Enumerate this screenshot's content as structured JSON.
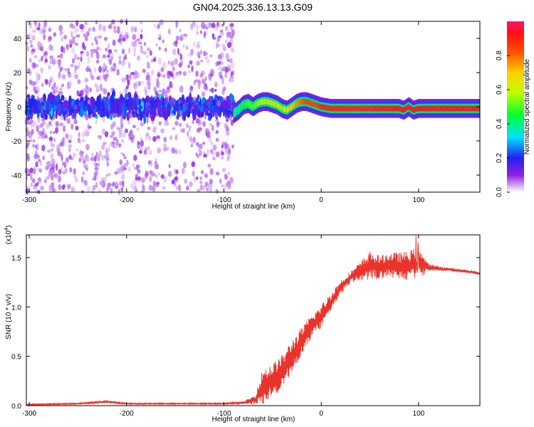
{
  "title": "GN04.2025.336.13.13.G09",
  "chart_data": [
    {
      "type": "heatmap",
      "xlabel": "Height of straight line (km)",
      "ylabel": "Frequency (Hz)",
      "xlim": [
        -303,
        163
      ],
      "ylim": [
        -50,
        50
      ],
      "xticks": [
        -300,
        -200,
        -100,
        0,
        100
      ],
      "yticks": [
        -40,
        -20,
        0,
        20,
        40
      ],
      "colorbar": {
        "label": "Normalized spectral amplitude",
        "range": [
          0.0,
          1.0
        ],
        "ticks": [
          "0.0",
          "0.2",
          "0.4",
          "0.6",
          "0.8"
        ],
        "ticks_values": [
          0.0,
          0.2,
          0.4,
          0.6,
          0.8
        ]
      },
      "noise_region_x": [
        -303,
        -90
      ],
      "signal_trace": {
        "x": [
          -90,
          -85,
          -80,
          -75,
          -70,
          -65,
          -60,
          -55,
          -50,
          -45,
          -40,
          -35,
          -30,
          -25,
          -20,
          -15,
          -10,
          -5,
          0,
          10,
          20,
          30,
          40,
          50,
          60,
          70,
          80,
          85,
          90,
          95,
          100,
          120,
          140,
          163
        ],
        "freq": [
          -4,
          -2,
          1,
          2,
          0,
          2,
          3,
          3,
          2,
          1,
          -1,
          -2,
          0,
          2,
          3,
          3,
          2,
          1,
          0,
          -1,
          -1,
          -1,
          -1,
          -1,
          -1,
          -1,
          -1,
          -2,
          0,
          -2,
          -1,
          -1,
          -1,
          -1
        ],
        "amplitude": [
          0.4,
          0.35,
          0.45,
          0.5,
          0.5,
          0.55,
          0.6,
          0.6,
          0.65,
          0.6,
          0.55,
          0.65,
          0.7,
          0.75,
          0.8,
          0.85,
          0.85,
          0.85,
          0.9,
          0.9,
          0.9,
          0.9,
          0.9,
          0.9,
          0.92,
          0.92,
          0.92,
          0.92,
          0.95,
          0.92,
          0.92,
          0.92,
          0.92,
          0.92
        ]
      }
    },
    {
      "type": "line",
      "xlabel": "Height of straight line (km)",
      "ylabel": "SNR (10 * v/v)",
      "y_multiplier": "(x10",
      "y_multiplier_exp": "4",
      "y_multiplier_close": ")",
      "xlim": [
        -303,
        163
      ],
      "ylim": [
        0,
        1.73
      ],
      "xticks": [
        -300,
        -200,
        -100,
        0,
        100
      ],
      "yticks": [
        "0.0",
        "0.5",
        "1.0",
        "1.5"
      ],
      "yticks_values": [
        0.0,
        0.5,
        1.0,
        1.5
      ],
      "color": "#e8342c",
      "series_envelope": {
        "x": [
          -303,
          -250,
          -220,
          -200,
          -150,
          -100,
          -80,
          -68,
          -60,
          -50,
          -40,
          -30,
          -20,
          -10,
          0,
          10,
          20,
          30,
          40,
          50,
          60,
          70,
          80,
          90,
          100,
          110,
          130,
          150,
          163
        ],
        "y": [
          0.01,
          0.02,
          0.04,
          0.02,
          0.02,
          0.02,
          0.03,
          0.06,
          0.2,
          0.25,
          0.35,
          0.5,
          0.65,
          0.8,
          0.9,
          1.05,
          1.2,
          1.3,
          1.36,
          1.42,
          1.4,
          1.43,
          1.41,
          1.42,
          1.45,
          1.4,
          1.38,
          1.36,
          1.34
        ],
        "noise_amplitude": [
          0.005,
          0.005,
          0.01,
          0.005,
          0.005,
          0.005,
          0.01,
          0.04,
          0.15,
          0.15,
          0.14,
          0.14,
          0.12,
          0.1,
          0.1,
          0.08,
          0.06,
          0.05,
          0.08,
          0.12,
          0.1,
          0.1,
          0.12,
          0.12,
          0.14,
          0.03,
          0.015,
          0.015,
          0.015
        ]
      }
    }
  ]
}
